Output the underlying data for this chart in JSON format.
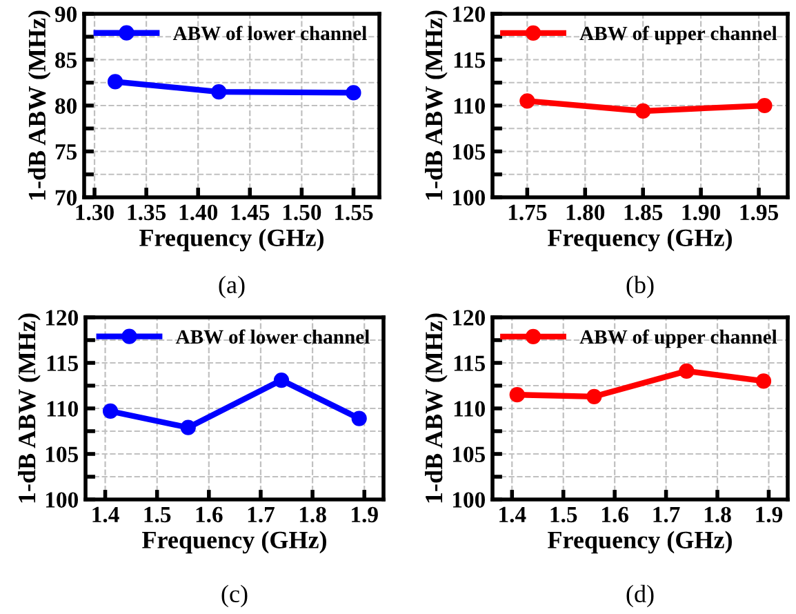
{
  "chart_data": [
    {
      "type": "line",
      "xlabel": "Frequency (GHz)",
      "ylabel": "1-dB ABW (MHz)",
      "annotations": [
        "(a)"
      ],
      "legend": "top",
      "grid": true,
      "marker": "circle",
      "line_style": "solid",
      "x": [
        1.32,
        1.42,
        1.55
      ],
      "xlim": [
        1.29,
        1.575
      ],
      "ylim": [
        70,
        90
      ],
      "xticks": [
        {
          "value": 1.3,
          "label": "1.30"
        },
        {
          "value": 1.35,
          "label": "1.35"
        },
        {
          "value": 1.4,
          "label": "1.40"
        },
        {
          "value": 1.45,
          "label": "1.45"
        },
        {
          "value": 1.5,
          "label": "1.50"
        },
        {
          "value": 1.55,
          "label": "1.55"
        }
      ],
      "yticks": [
        70,
        {
          "value": 72.5,
          "label": null
        },
        75,
        {
          "value": 77.5,
          "label": null
        },
        80,
        {
          "value": 82.5,
          "label": null
        },
        85,
        {
          "value": 87.5,
          "label": null
        },
        90
      ],
      "series": [
        {
          "name": "ABW of lower channel",
          "color": "#0000ff",
          "values": [
            82.6,
            81.5,
            81.4
          ]
        }
      ]
    },
    {
      "type": "line",
      "xlabel": "Frequency (GHz)",
      "ylabel": "1-dB ABW (MHz)",
      "annotations": [
        "(b)"
      ],
      "legend": "top",
      "grid": true,
      "marker": "circle",
      "line_style": "solid",
      "x": [
        1.75,
        1.85,
        1.955
      ],
      "xlim": [
        1.72,
        1.975
      ],
      "ylim": [
        100,
        120
      ],
      "xticks": [
        {
          "value": 1.75,
          "label": "1.75"
        },
        {
          "value": 1.8,
          "label": "1.80"
        },
        {
          "value": 1.85,
          "label": "1.85"
        },
        {
          "value": 1.9,
          "label": "1.90"
        },
        {
          "value": 1.95,
          "label": "1.95"
        }
      ],
      "yticks": [
        100,
        {
          "value": 102.5,
          "label": null
        },
        105,
        {
          "value": 107.5,
          "label": null
        },
        110,
        {
          "value": 112.5,
          "label": null
        },
        115,
        {
          "value": 117.5,
          "label": null
        },
        120
      ],
      "series": [
        {
          "name": "ABW of upper channel",
          "color": "#ff0000",
          "values": [
            110.5,
            109.4,
            110.0
          ]
        }
      ]
    },
    {
      "type": "line",
      "xlabel": "Frequency (GHz)",
      "ylabel": "1-dB ABW (MHz)",
      "annotations": [
        "(c)"
      ],
      "legend": "top",
      "grid": true,
      "marker": "circle",
      "line_style": "solid",
      "x": [
        1.41,
        1.56,
        1.74,
        1.89
      ],
      "xlim": [
        1.362,
        1.937
      ],
      "ylim": [
        100,
        120
      ],
      "xticks": [
        1.4,
        1.5,
        1.6,
        1.7,
        1.8,
        1.9
      ],
      "yticks": [
        100,
        {
          "value": 102.5,
          "label": null
        },
        105,
        {
          "value": 107.5,
          "label": null
        },
        110,
        {
          "value": 112.5,
          "label": null
        },
        115,
        {
          "value": 117.5,
          "label": null
        },
        120
      ],
      "series": [
        {
          "name": "ABW of lower channel",
          "color": "#0000ff",
          "values": [
            109.7,
            107.9,
            113.1,
            108.9
          ]
        }
      ]
    },
    {
      "type": "line",
      "xlabel": "Frequency (GHz)",
      "ylabel": "1-dB ABW (MHz)",
      "annotations": [
        "(d)"
      ],
      "legend": "top",
      "grid": true,
      "marker": "circle",
      "line_style": "solid",
      "x": [
        1.41,
        1.56,
        1.74,
        1.89
      ],
      "xlim": [
        1.362,
        1.937
      ],
      "ylim": [
        100,
        120
      ],
      "xticks": [
        1.4,
        1.5,
        1.6,
        1.7,
        1.8,
        1.9
      ],
      "yticks": [
        100,
        {
          "value": 102.5,
          "label": null
        },
        105,
        {
          "value": 107.5,
          "label": null
        },
        110,
        {
          "value": 112.5,
          "label": null
        },
        115,
        {
          "value": 117.5,
          "label": null
        },
        120
      ],
      "series": [
        {
          "name": "ABW of upper channel",
          "color": "#ff0000",
          "values": [
            111.5,
            111.3,
            114.1,
            113.0
          ]
        }
      ]
    }
  ]
}
